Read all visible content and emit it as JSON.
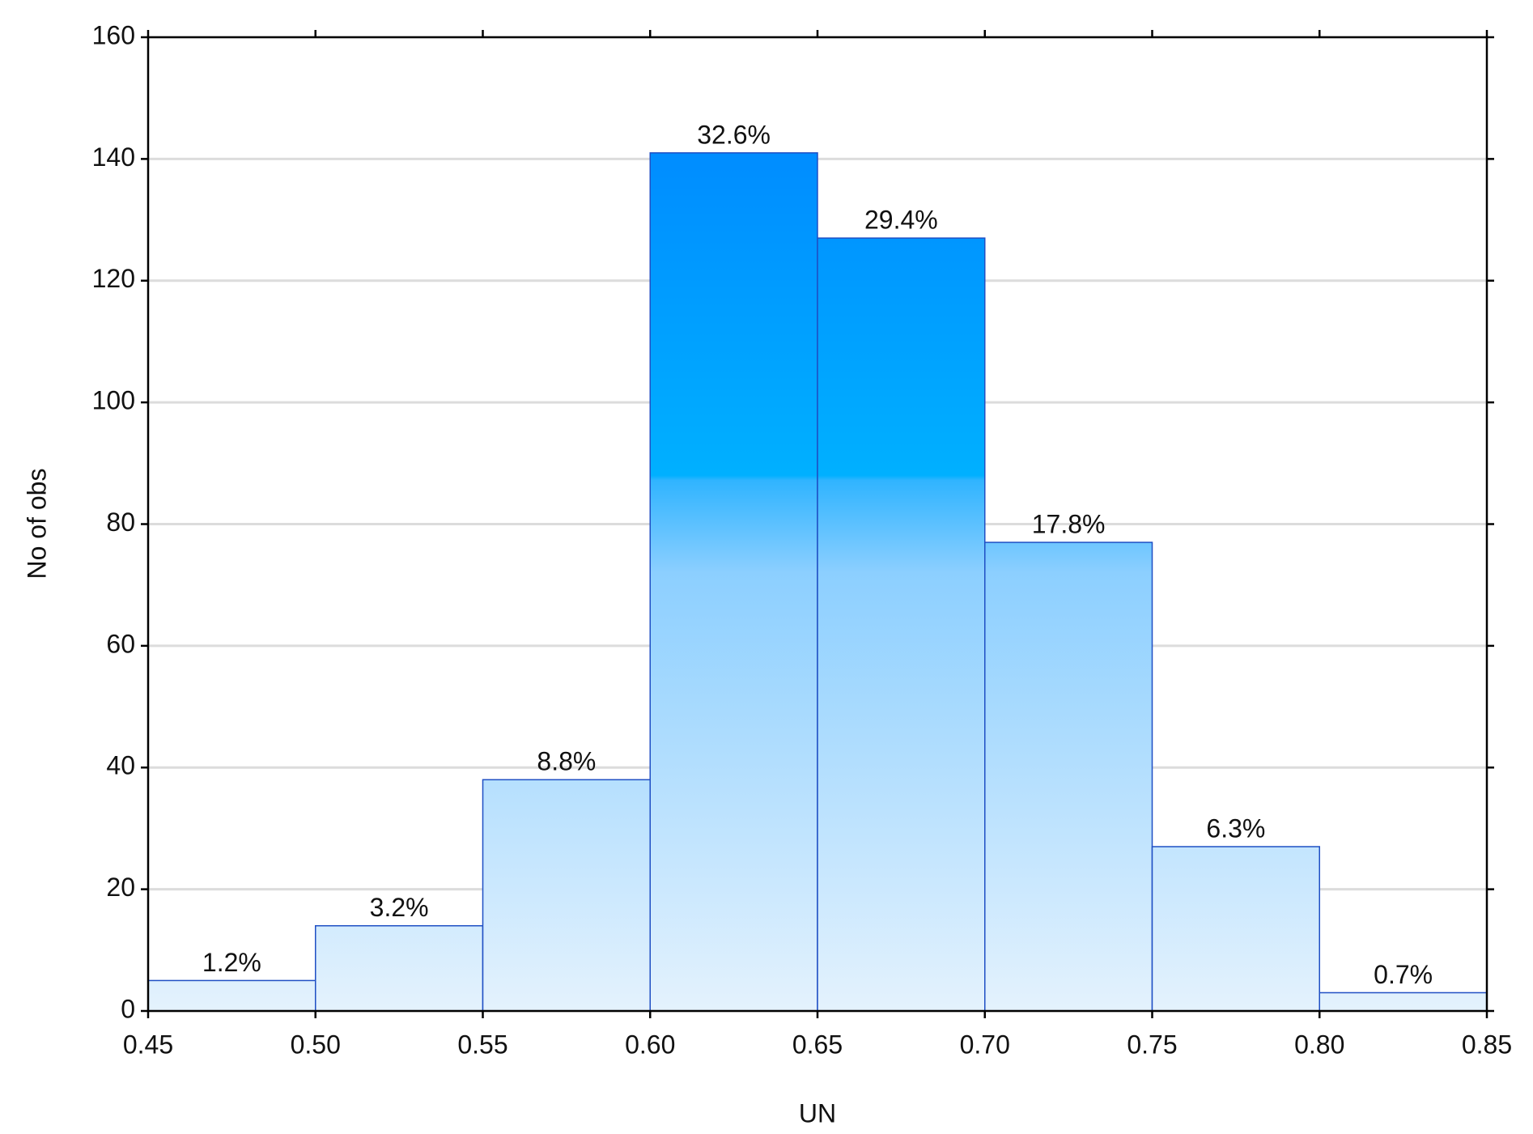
{
  "chart_data": {
    "type": "histogram",
    "x_label": "UN",
    "y_label": "No of obs",
    "bins": [
      0.45,
      0.5,
      0.55,
      0.6,
      0.65,
      0.7,
      0.75,
      0.8,
      0.85
    ],
    "values": [
      5,
      14,
      38,
      141,
      127,
      77,
      27,
      3
    ],
    "bar_labels": [
      "1.2%",
      "3.2%",
      "8.8%",
      "32.6%",
      "29.4%",
      "17.8%",
      "6.3%",
      "0.7%"
    ],
    "xlim": [
      0.45,
      0.85
    ],
    "xticks": [
      0.45,
      {
        "value": 0.5,
        "label": "0.50"
      },
      0.55,
      {
        "value": 0.6,
        "label": "0.60"
      },
      0.65,
      {
        "value": 0.7,
        "label": "0.70"
      },
      0.75,
      {
        "value": 0.8,
        "label": "0.80"
      },
      0.85
    ],
    "ylim": [
      0,
      160
    ],
    "yticks": [
      0,
      20,
      40,
      60,
      80,
      100,
      120,
      140,
      160
    ],
    "grid": true,
    "edge_color": "#1f4fc4"
  }
}
